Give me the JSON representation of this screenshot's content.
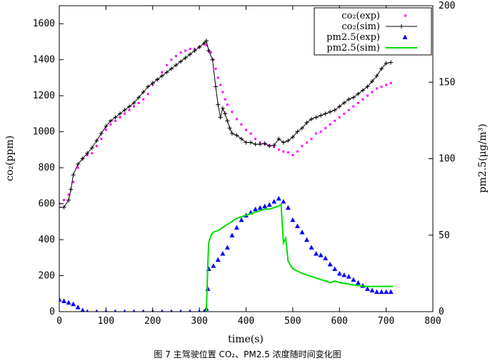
{
  "caption": "图 7 主驾驶位置 CO₂、PM2.5 浓度随时间变化图",
  "chart_data": {
    "type": "line",
    "xlabel": "time(s)",
    "ylabel_left": "co₂(ppm)",
    "ylabel_right": "pm2.5(μg/m³)",
    "xlim": [
      0,
      800
    ],
    "ylim_left": [
      0,
      1700
    ],
    "ylim_right": [
      0,
      200
    ],
    "x_ticks": [
      0,
      100,
      200,
      300,
      400,
      500,
      600,
      700,
      800
    ],
    "y_ticks_left": [
      0,
      200,
      400,
      600,
      800,
      1000,
      1200,
      1400,
      1600
    ],
    "y_ticks_right": [
      0,
      50,
      100,
      150,
      200
    ],
    "grid": false,
    "legend_position": "top-right",
    "series": [
      {
        "name": "co₂(exp)",
        "axis": "left",
        "style": "dots",
        "color": "#ff00ff",
        "points": [
          [
            0,
            600
          ],
          [
            10,
            620
          ],
          [
            20,
            650
          ],
          [
            30,
            720
          ],
          [
            40,
            800
          ],
          [
            50,
            850
          ],
          [
            60,
            870
          ],
          [
            70,
            880
          ],
          [
            80,
            920
          ],
          [
            90,
            960
          ],
          [
            100,
            1010
          ],
          [
            110,
            1040
          ],
          [
            120,
            1060
          ],
          [
            130,
            1080
          ],
          [
            140,
            1100
          ],
          [
            150,
            1120
          ],
          [
            160,
            1140
          ],
          [
            170,
            1160
          ],
          [
            180,
            1180
          ],
          [
            190,
            1210
          ],
          [
            200,
            1260
          ],
          [
            210,
            1290
          ],
          [
            220,
            1330
          ],
          [
            230,
            1370
          ],
          [
            240,
            1400
          ],
          [
            250,
            1420
          ],
          [
            260,
            1440
          ],
          [
            270,
            1450
          ],
          [
            280,
            1460
          ],
          [
            290,
            1460
          ],
          [
            300,
            1470
          ],
          [
            310,
            1490
          ],
          [
            315,
            1480
          ],
          [
            320,
            1450
          ],
          [
            325,
            1440
          ],
          [
            330,
            1400
          ],
          [
            335,
            1350
          ],
          [
            340,
            1300
          ],
          [
            345,
            1260
          ],
          [
            350,
            1220
          ],
          [
            355,
            1180
          ],
          [
            360,
            1150
          ],
          [
            370,
            1110
          ],
          [
            380,
            1070
          ],
          [
            390,
            1040
          ],
          [
            400,
            1010
          ],
          [
            410,
            990
          ],
          [
            420,
            960
          ],
          [
            430,
            940
          ],
          [
            440,
            930
          ],
          [
            450,
            925
          ],
          [
            460,
            915
          ],
          [
            470,
            900
          ],
          [
            480,
            890
          ],
          [
            490,
            885
          ],
          [
            500,
            870
          ],
          [
            510,
            890
          ],
          [
            520,
            920
          ],
          [
            530,
            940
          ],
          [
            540,
            960
          ],
          [
            550,
            990
          ],
          [
            560,
            1000
          ],
          [
            570,
            1020
          ],
          [
            580,
            1040
          ],
          [
            590,
            1060
          ],
          [
            600,
            1080
          ],
          [
            610,
            1100
          ],
          [
            620,
            1120
          ],
          [
            630,
            1140
          ],
          [
            640,
            1160
          ],
          [
            650,
            1180
          ],
          [
            660,
            1200
          ],
          [
            670,
            1220
          ],
          [
            680,
            1240
          ],
          [
            690,
            1250
          ],
          [
            700,
            1260
          ],
          [
            710,
            1270
          ]
        ]
      },
      {
        "name": "co₂(sim)",
        "axis": "left",
        "style": "line-plus",
        "color": "#000000",
        "points": [
          [
            0,
            580
          ],
          [
            10,
            580
          ],
          [
            20,
            620
          ],
          [
            25,
            680
          ],
          [
            30,
            760
          ],
          [
            40,
            820
          ],
          [
            50,
            850
          ],
          [
            60,
            880
          ],
          [
            70,
            910
          ],
          [
            80,
            950
          ],
          [
            90,
            990
          ],
          [
            100,
            1030
          ],
          [
            110,
            1060
          ],
          [
            120,
            1080
          ],
          [
            130,
            1100
          ],
          [
            140,
            1120
          ],
          [
            150,
            1140
          ],
          [
            160,
            1160
          ],
          [
            170,
            1190
          ],
          [
            180,
            1220
          ],
          [
            190,
            1250
          ],
          [
            200,
            1270
          ],
          [
            210,
            1290
          ],
          [
            220,
            1310
          ],
          [
            230,
            1330
          ],
          [
            240,
            1350
          ],
          [
            250,
            1370
          ],
          [
            260,
            1390
          ],
          [
            270,
            1410
          ],
          [
            280,
            1430
          ],
          [
            290,
            1450
          ],
          [
            300,
            1470
          ],
          [
            310,
            1490
          ],
          [
            315,
            1505
          ],
          [
            320,
            1450
          ],
          [
            328,
            1400
          ],
          [
            335,
            1250
          ],
          [
            340,
            1150
          ],
          [
            345,
            1080
          ],
          [
            350,
            1130
          ],
          [
            355,
            1100
          ],
          [
            360,
            1060
          ],
          [
            365,
            1020
          ],
          [
            370,
            990
          ],
          [
            380,
            980
          ],
          [
            390,
            960
          ],
          [
            400,
            940
          ],
          [
            410,
            940
          ],
          [
            420,
            930
          ],
          [
            430,
            930
          ],
          [
            440,
            935
          ],
          [
            450,
            920
          ],
          [
            460,
            925
          ],
          [
            470,
            960
          ],
          [
            480,
            940
          ],
          [
            490,
            950
          ],
          [
            500,
            970
          ],
          [
            510,
            1000
          ],
          [
            520,
            1020
          ],
          [
            530,
            1050
          ],
          [
            540,
            1070
          ],
          [
            550,
            1080
          ],
          [
            560,
            1090
          ],
          [
            570,
            1100
          ],
          [
            580,
            1110
          ],
          [
            590,
            1120
          ],
          [
            600,
            1140
          ],
          [
            610,
            1160
          ],
          [
            620,
            1180
          ],
          [
            630,
            1190
          ],
          [
            640,
            1210
          ],
          [
            650,
            1230
          ],
          [
            660,
            1250
          ],
          [
            670,
            1280
          ],
          [
            680,
            1310
          ],
          [
            690,
            1350
          ],
          [
            700,
            1380
          ],
          [
            710,
            1385
          ]
        ]
      },
      {
        "name": "pm2.5(exp)",
        "axis": "right",
        "style": "triangles",
        "color": "#0000ff",
        "points": [
          [
            0,
            8
          ],
          [
            10,
            7
          ],
          [
            20,
            6
          ],
          [
            30,
            5
          ],
          [
            40,
            3
          ],
          [
            50,
            1
          ],
          [
            60,
            0
          ],
          [
            80,
            0
          ],
          [
            100,
            0
          ],
          [
            120,
            0
          ],
          [
            140,
            0
          ],
          [
            160,
            0
          ],
          [
            180,
            0
          ],
          [
            200,
            0
          ],
          [
            220,
            0
          ],
          [
            240,
            0
          ],
          [
            260,
            0
          ],
          [
            280,
            0
          ],
          [
            300,
            0
          ],
          [
            310,
            0
          ],
          [
            315,
            2
          ],
          [
            318,
            15
          ],
          [
            320,
            28
          ],
          [
            330,
            30
          ],
          [
            340,
            34
          ],
          [
            350,
            38
          ],
          [
            360,
            42
          ],
          [
            370,
            50
          ],
          [
            380,
            55
          ],
          [
            390,
            60
          ],
          [
            400,
            63
          ],
          [
            410,
            65
          ],
          [
            420,
            67
          ],
          [
            430,
            68
          ],
          [
            440,
            69
          ],
          [
            450,
            70
          ],
          [
            460,
            72
          ],
          [
            470,
            74
          ],
          [
            480,
            72
          ],
          [
            490,
            68
          ],
          [
            500,
            60
          ],
          [
            510,
            56
          ],
          [
            520,
            52
          ],
          [
            530,
            47
          ],
          [
            540,
            42
          ],
          [
            550,
            38
          ],
          [
            560,
            37
          ],
          [
            570,
            35
          ],
          [
            580,
            31
          ],
          [
            590,
            28
          ],
          [
            600,
            25
          ],
          [
            610,
            24
          ],
          [
            620,
            23
          ],
          [
            630,
            21
          ],
          [
            640,
            19
          ],
          [
            650,
            17
          ],
          [
            660,
            15
          ],
          [
            670,
            14
          ],
          [
            680,
            13
          ],
          [
            690,
            13
          ],
          [
            700,
            13
          ],
          [
            710,
            13
          ]
        ]
      },
      {
        "name": "pm2.5(sim)",
        "axis": "right",
        "style": "line",
        "color": "#00dd00",
        "points": [
          [
            315,
            0
          ],
          [
            318,
            30
          ],
          [
            320,
            45
          ],
          [
            325,
            50
          ],
          [
            330,
            52
          ],
          [
            340,
            53
          ],
          [
            350,
            55
          ],
          [
            360,
            57
          ],
          [
            370,
            59
          ],
          [
            380,
            61
          ],
          [
            390,
            62
          ],
          [
            400,
            63
          ],
          [
            410,
            64
          ],
          [
            420,
            65
          ],
          [
            430,
            66
          ],
          [
            440,
            67
          ],
          [
            450,
            67
          ],
          [
            460,
            68
          ],
          [
            470,
            69
          ],
          [
            475,
            70
          ],
          [
            480,
            45
          ],
          [
            485,
            48
          ],
          [
            490,
            33
          ],
          [
            500,
            28
          ],
          [
            520,
            25
          ],
          [
            540,
            23
          ],
          [
            560,
            21
          ],
          [
            580,
            19
          ],
          [
            590,
            20
          ],
          [
            600,
            19
          ],
          [
            620,
            18
          ],
          [
            640,
            17
          ],
          [
            660,
            16.5
          ],
          [
            680,
            16.5
          ],
          [
            700,
            16.5
          ],
          [
            715,
            16.5
          ]
        ]
      }
    ]
  }
}
